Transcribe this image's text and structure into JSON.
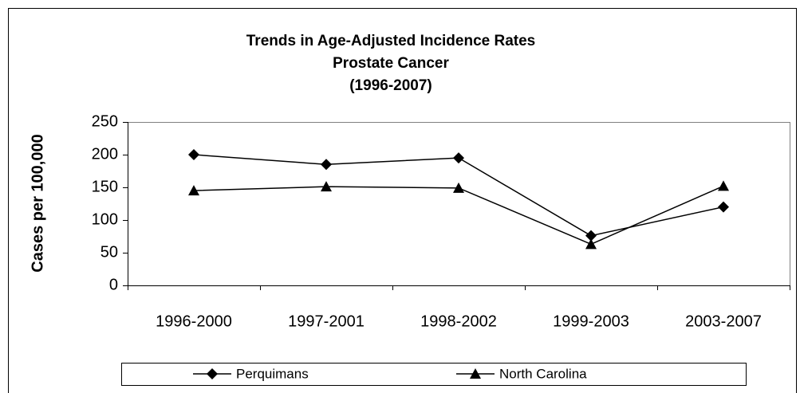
{
  "chart_data": {
    "type": "line",
    "title": [
      "Trends in Age-Adjusted Incidence Rates",
      "Prostate Cancer",
      "(1996-2007)"
    ],
    "y_label": "Cases per 100,000",
    "categories": [
      "1996-2000",
      "1997-2001",
      "1998-2002",
      "1999-2003",
      "2003-2007"
    ],
    "series": [
      {
        "name": "Perquimans",
        "color": "#000000",
        "marker": "diamond",
        "values": [
          200,
          185,
          195,
          76,
          120
        ]
      },
      {
        "name": "North Carolina",
        "color": "#000000",
        "marker": "triangle",
        "values": [
          145,
          151,
          149,
          63,
          152
        ]
      }
    ],
    "ylim": [
      0,
      250
    ],
    "yticks": [
      0,
      50,
      100,
      150,
      200,
      250
    ],
    "grid": false,
    "legend": "bottom"
  }
}
